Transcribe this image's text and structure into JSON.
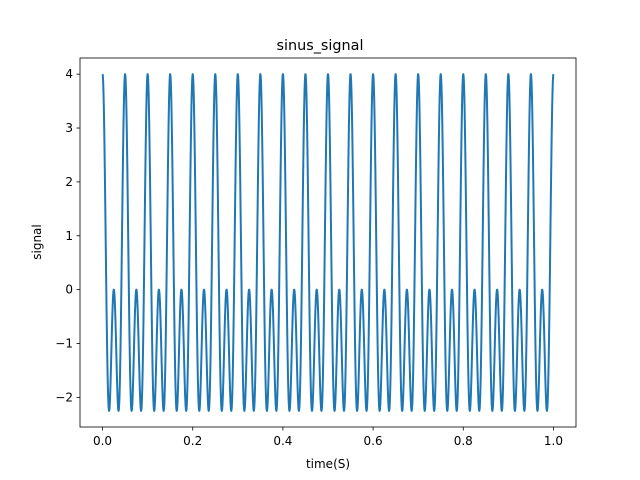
{
  "chart_data": {
    "type": "line",
    "title": "sinus_signal",
    "xlabel": "time(S)",
    "ylabel": "signal",
    "xlim": [
      -0.05,
      1.05
    ],
    "ylim": [
      -2.55,
      4.3
    ],
    "x_ticks": [
      0.0,
      0.2,
      0.4,
      0.6,
      0.8,
      1.0
    ],
    "x_tick_labels": [
      "0.0",
      "0.2",
      "0.4",
      "0.6",
      "0.8",
      "1.0"
    ],
    "y_ticks": [
      -2,
      -1,
      0,
      1,
      2,
      3,
      4
    ],
    "y_tick_labels": [
      "−2",
      "−1",
      "0",
      "1",
      "2",
      "3",
      "4"
    ],
    "grid": false,
    "series": [
      {
        "color": "#1f77b4",
        "function": "1 + 3*cos(2*pi*20*t) + ... (approx: peaks 4, secondary peaks 0, troughs -2.2)",
        "x_start": 0.0,
        "x_end": 1.0,
        "main_peak": 4.0,
        "secondary_peak": 0.0,
        "trough": -2.25,
        "cycles": 20
      }
    ]
  }
}
